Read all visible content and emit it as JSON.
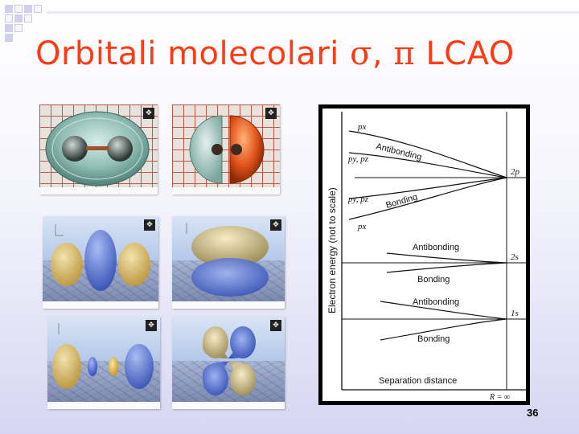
{
  "slide": {
    "title_prefix": "Orbitali molecolari ",
    "title_sigma": "σ",
    "title_sep": ", ",
    "title_pi": "π",
    "title_suffix": " LCAO",
    "page_number": "36"
  },
  "diagram": {
    "y_axis_label": "Electron energy (not to scale)",
    "x_axis_label": "Separation distance",
    "r_label": "R = ∞",
    "levels": {
      "px_upper": "px",
      "pypz_upper": "py, pz",
      "pypz_lower": "py, pz",
      "px_lower": "px",
      "level_2p": "2p",
      "level_2s": "2s",
      "level_1s": "1s"
    },
    "curve_labels": {
      "antibonding_2p": "Antibonding",
      "bonding_2p": "Bonding",
      "antibonding_2s": "Antibonding",
      "bonding_2s": "Bonding",
      "antibonding_1s": "Antibonding",
      "bonding_1s": "Bonding"
    }
  },
  "colors": {
    "title": "#ff3b14",
    "glass": "#7fb0a8",
    "orange_lobe": "#e2541a",
    "gold_lobe": "#e3c25a",
    "blue_lobe": "#4b6ed6"
  }
}
